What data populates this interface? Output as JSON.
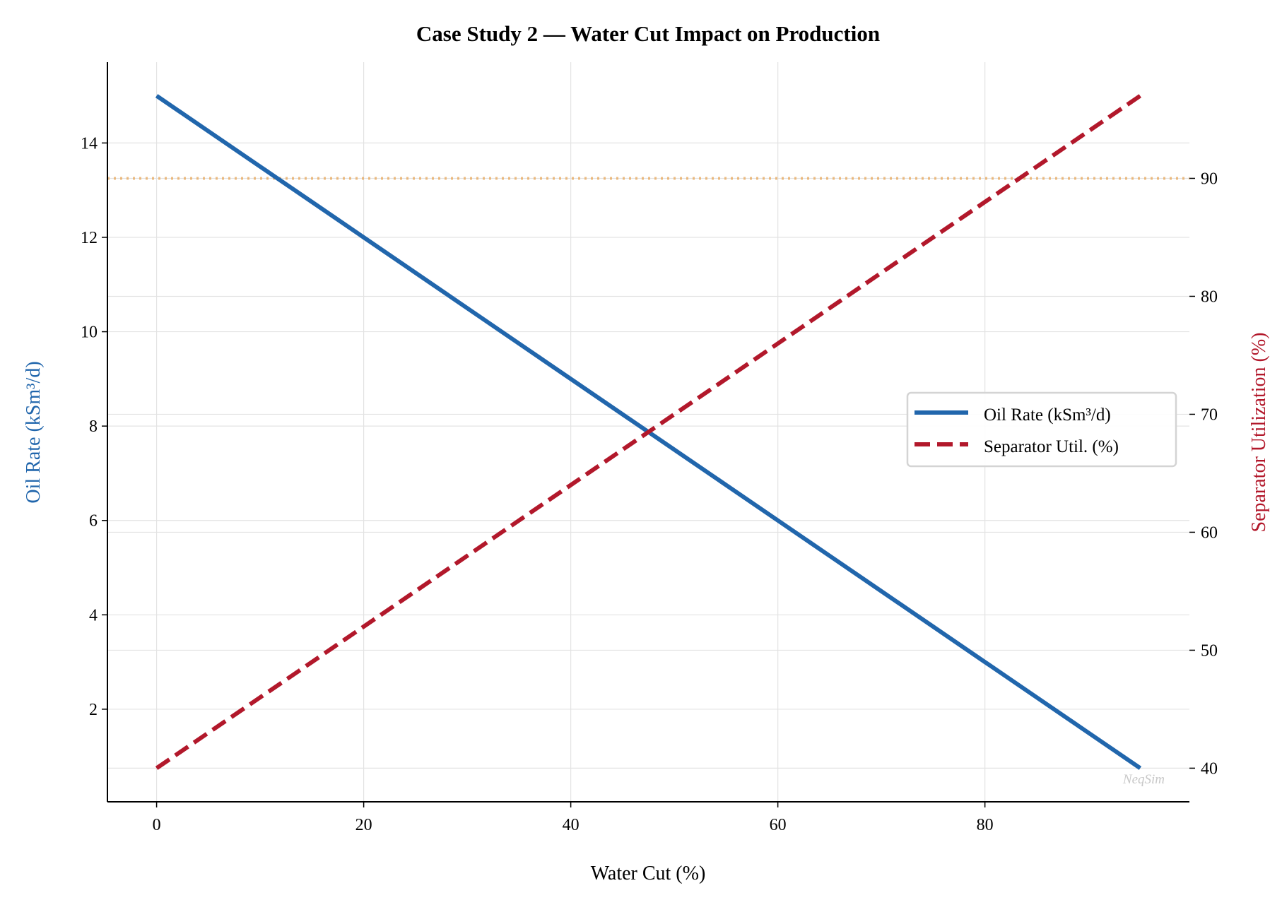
{
  "chart_data": {
    "type": "line",
    "title": "Case Study 2 — Water Cut Impact on Production",
    "xlabel": "Water Cut (%)",
    "ylabel_left": "Oil Rate (kSm³/d)",
    "ylabel_right": "Separator Utilization (%)",
    "xlim": [
      -4.75,
      99.75
    ],
    "ylim_left": [
      0.0375,
      15.7125
    ],
    "ylim_right": [
      37.15,
      99.85
    ],
    "x_ticks": [
      0,
      20,
      40,
      60,
      80
    ],
    "y_left_ticks": [
      2,
      4,
      6,
      8,
      10,
      12,
      14
    ],
    "y_right_ticks": [
      40,
      50,
      60,
      70,
      80,
      90
    ],
    "grid": true,
    "legend_placement": "center-right",
    "x": [
      0,
      5,
      10,
      15,
      20,
      25,
      30,
      35,
      40,
      45,
      50,
      55,
      60,
      65,
      70,
      75,
      80,
      85,
      90,
      95
    ],
    "series": [
      {
        "name": "Oil Rate (kSm³/d)",
        "axis": "left",
        "style": "solid",
        "color": "#2166ac",
        "values": [
          15,
          14.25,
          13.5,
          12.75,
          12,
          11.25,
          10.5,
          9.75,
          9,
          8.25,
          7.5,
          6.75,
          6,
          5.25,
          4.5,
          3.75,
          3,
          2.25,
          1.5,
          0.75
        ]
      },
      {
        "name": "Separator Util. (%)",
        "axis": "right",
        "style": "dashed",
        "color": "#b2182b",
        "values": [
          40,
          43,
          46,
          49,
          52,
          55,
          58,
          61,
          64,
          67,
          70,
          73,
          76,
          79,
          82,
          85,
          88,
          91,
          94,
          97
        ]
      }
    ],
    "reference_lines": [
      {
        "axis": "right",
        "value": 90,
        "style": "dotted",
        "color": "#e8a85c"
      }
    ],
    "watermark": "NeqSim",
    "left_label_color": "#2166ac",
    "right_label_color": "#b2182b"
  }
}
